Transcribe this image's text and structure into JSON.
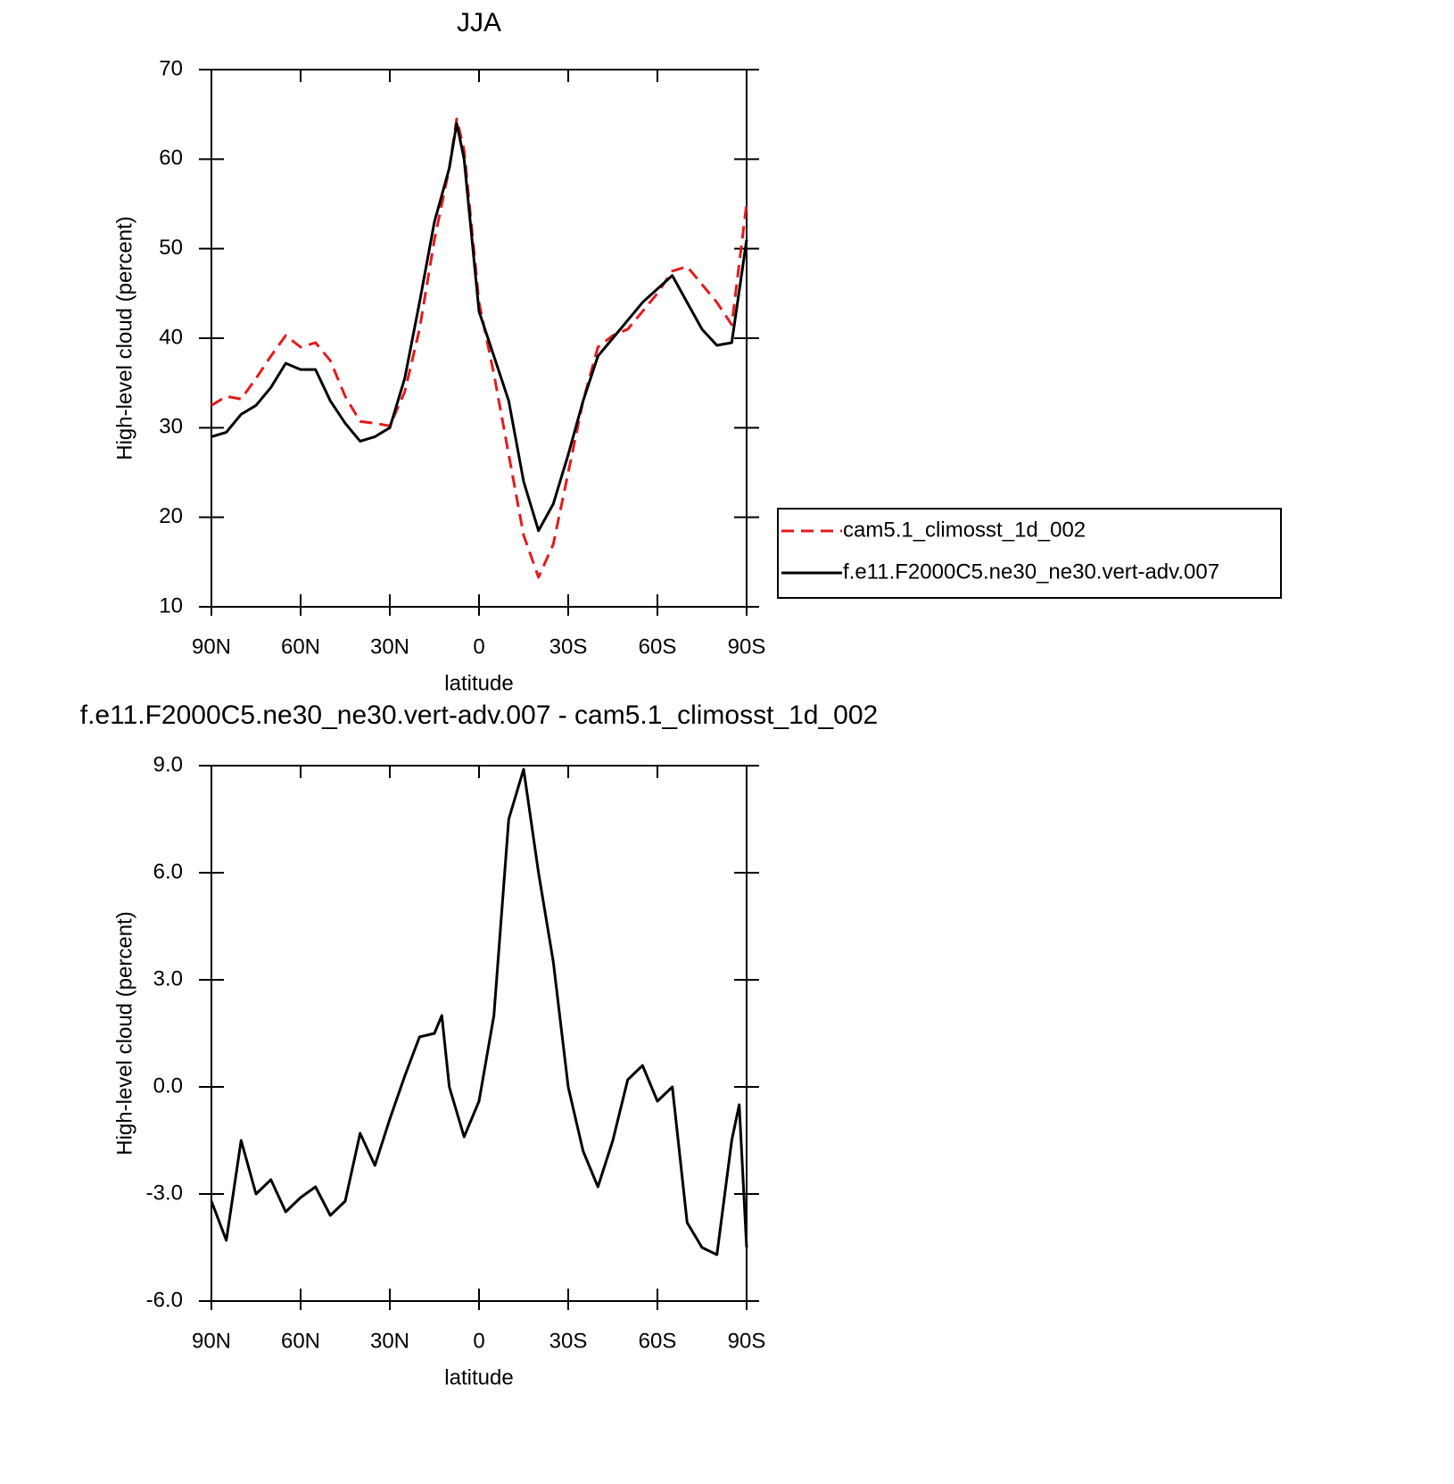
{
  "chart_data": [
    {
      "type": "line",
      "title": "JJA",
      "xlabel": "latitude",
      "ylabel": "High-level cloud (percent)",
      "x": [
        90,
        85,
        80,
        75,
        70,
        65,
        60,
        55,
        50,
        45,
        40,
        35,
        30,
        25,
        20,
        15,
        10,
        7.5,
        5,
        0,
        -5,
        -10,
        -15,
        -20,
        -25,
        -30,
        -35,
        -40,
        -45,
        -50,
        -55,
        -60,
        -65,
        -70,
        -75,
        -80,
        -85,
        -90
      ],
      "xlim": [
        90,
        -90
      ],
      "xticks": [
        {
          "value": 90,
          "label": "90N"
        },
        {
          "value": 60,
          "label": "60N"
        },
        {
          "value": 30,
          "label": "30N"
        },
        0,
        {
          "value": -30,
          "label": "30S"
        },
        {
          "value": -60,
          "label": "60S"
        },
        {
          "value": -90,
          "label": "90S"
        }
      ],
      "ylim": [
        10,
        70
      ],
      "yticks": [
        10,
        20,
        30,
        40,
        50,
        60,
        70
      ],
      "legend": "right",
      "series": [
        {
          "name": "cam5.1_climosst_1d_002",
          "color": "#e41a1c",
          "dash": true,
          "values": [
            32.5,
            33.5,
            33.2,
            35.5,
            38,
            40.3,
            39,
            39.5,
            37.5,
            33.5,
            30.7,
            30.5,
            30.2,
            34,
            41,
            51,
            59,
            64.5,
            61,
            44,
            36,
            27,
            18,
            13.3,
            17,
            25,
            33,
            39,
            40.3,
            41,
            43,
            45,
            47.5,
            48,
            46,
            44,
            41.5,
            55
          ]
        },
        {
          "name": "f.e11.F2000C5.ne30_ne30.vert-adv.007",
          "color": "#000000",
          "dash": false,
          "values": [
            29,
            29.5,
            31.5,
            32.5,
            34.5,
            37.2,
            36.5,
            36.5,
            33,
            30.5,
            28.5,
            29,
            30,
            35.5,
            44,
            53,
            59,
            64,
            60,
            43,
            38,
            33,
            24,
            18.5,
            21.5,
            27,
            33,
            38,
            40,
            42,
            44,
            45.5,
            47,
            44,
            41,
            39.2,
            39.5,
            51
          ]
        }
      ]
    },
    {
      "type": "line",
      "title": "f.e11.F2000C5.ne30_ne30.vert-adv.007 - cam5.1_climosst_1d_002",
      "xlabel": "latitude",
      "ylabel": "High-level cloud (percent)",
      "x": [
        90,
        85,
        80,
        75,
        70,
        65,
        60,
        55,
        50,
        45,
        40,
        35,
        30,
        25,
        20,
        15,
        12.5,
        10,
        5,
        0,
        -5,
        -10,
        -15,
        -20,
        -25,
        -30,
        -35,
        -40,
        -45,
        -50,
        -55,
        -60,
        -65,
        -70,
        -75,
        -80,
        -85,
        -87.5,
        -90
      ],
      "xlim": [
        90,
        -90
      ],
      "xticks": [
        {
          "value": 90,
          "label": "90N"
        },
        {
          "value": 60,
          "label": "60N"
        },
        {
          "value": 30,
          "label": "30N"
        },
        0,
        {
          "value": -30,
          "label": "30S"
        },
        {
          "value": -60,
          "label": "60S"
        },
        {
          "value": -90,
          "label": "90S"
        }
      ],
      "ylim": [
        -6,
        9
      ],
      "yticks": [
        {
          "value": -6,
          "label": "-6.0"
        },
        {
          "value": -3,
          "label": "-3.0"
        },
        {
          "value": 0,
          "label": "0.0"
        },
        {
          "value": 3,
          "label": "3.0"
        },
        {
          "value": 6,
          "label": "6.0"
        },
        {
          "value": 9,
          "label": "9.0"
        }
      ],
      "series": [
        {
          "color": "#000000",
          "dash": false,
          "values": [
            -3.2,
            -4.3,
            -1.5,
            -3,
            -2.6,
            -3.5,
            -3.1,
            -2.8,
            -3.6,
            -3.2,
            -1.3,
            -2.2,
            -0.9,
            0.3,
            1.4,
            1.5,
            2,
            0,
            -1.4,
            -0.4,
            2,
            7.5,
            8.9,
            6,
            3.5,
            0,
            -1.8,
            -2.8,
            -1.5,
            0.2,
            0.6,
            -0.4,
            0,
            -3.8,
            -4.5,
            -4.7,
            -1.5,
            -0.5,
            -4.5
          ]
        }
      ]
    }
  ]
}
